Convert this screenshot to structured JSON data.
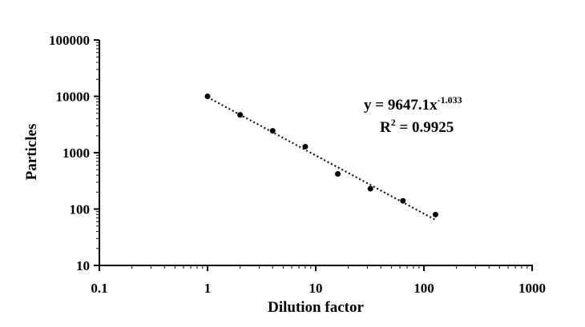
{
  "chart_data": {
    "type": "scatter",
    "x_scale": "log",
    "y_scale": "log",
    "xlabel": "Dilution factor",
    "ylabel": "Particles",
    "xlim": [
      0.1,
      1000
    ],
    "ylim": [
      10,
      100000
    ],
    "x_ticks": [
      0.1,
      1,
      10,
      100,
      1000
    ],
    "x_tick_labels": [
      "0.1",
      "1",
      "10",
      "100",
      "1000"
    ],
    "y_ticks": [
      10,
      100,
      1000,
      10000,
      100000
    ],
    "y_tick_labels": [
      "10",
      "100",
      "1000",
      "10000",
      "100000"
    ],
    "grid": false,
    "series": [
      {
        "x": [
          1,
          2,
          4,
          8,
          16,
          32,
          64,
          128
        ],
        "y": [
          10000,
          4700,
          2450,
          1280,
          420,
          230,
          140,
          80
        ]
      }
    ],
    "trendline": {
      "type": "power",
      "a": 9647.1,
      "b": -1.033,
      "style": "dotted"
    },
    "equation": {
      "prefix": "y = 9647.1x",
      "exponent": "-1.033"
    },
    "r_squared": {
      "prefix": "R",
      "power": "2",
      "suffix": " = 0.9925"
    },
    "colors": {
      "points": "#000000",
      "axes": "#000000"
    }
  }
}
